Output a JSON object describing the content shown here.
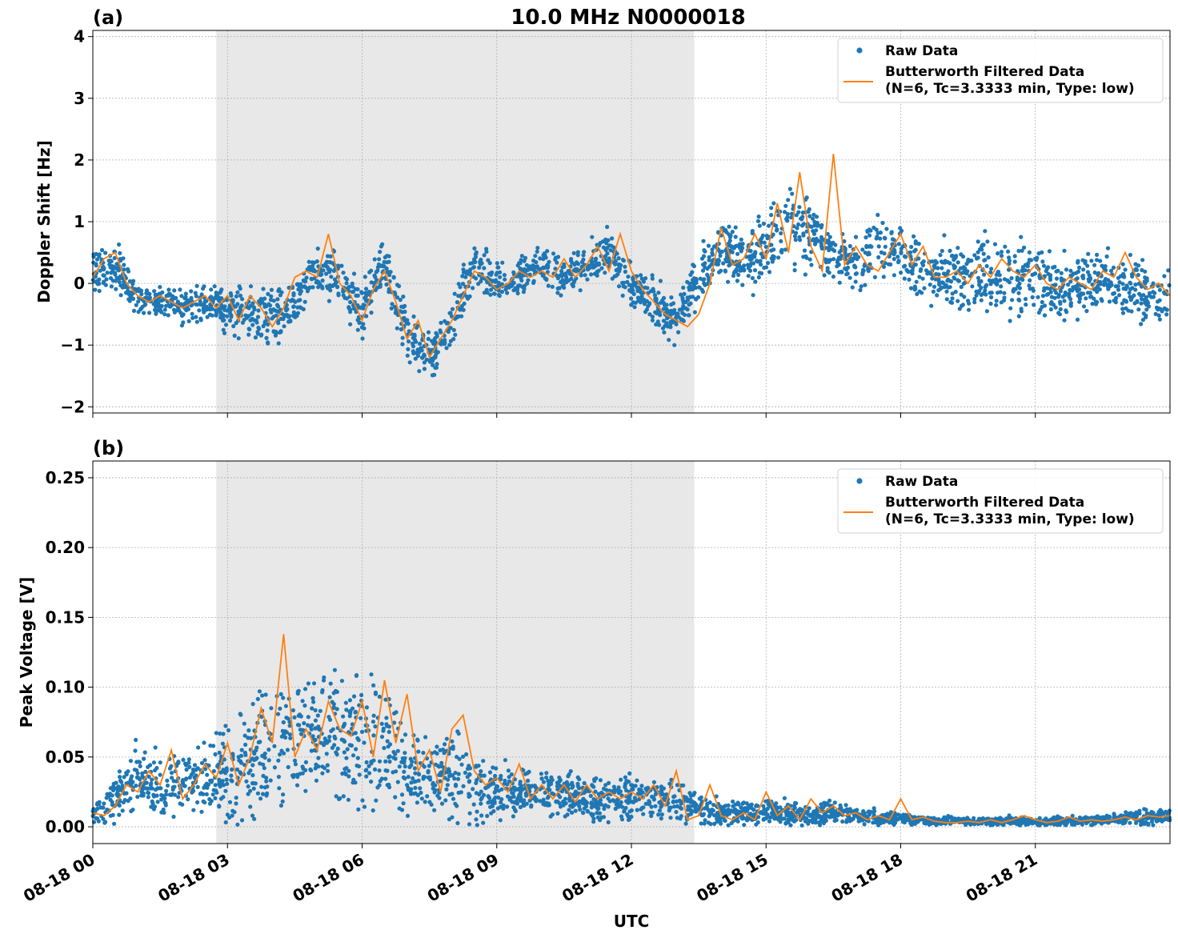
{
  "colors": {
    "raw": "#1f77b4",
    "filtered": "#ff7f0e",
    "shade": "#e8e8e8"
  },
  "chart_data": [
    {
      "type": "scatter",
      "panel_label": "(a)",
      "title": "10.0 MHz N0000018",
      "ylabel": "Doppler Shift [Hz]",
      "xlabel": "",
      "xlim": [
        "08-18 00:00",
        "08-19 00:00"
      ],
      "ylim": [
        -2.1,
        4.1
      ],
      "yticks": [
        -2,
        -1,
        0,
        1,
        2,
        3,
        4
      ],
      "ytick_labels": [
        "−2",
        "−1",
        "0",
        "1",
        "2",
        "3",
        "4"
      ],
      "xticks_hours": [
        0,
        3,
        6,
        9,
        12,
        15,
        18,
        21
      ],
      "grid": true,
      "legend_position": "top-right",
      "shaded_interval_utc_hours": [
        2.75,
        13.4
      ],
      "series": [
        {
          "name": "Raw Data",
          "style": "points",
          "x_hours": [
            0,
            0.5,
            1,
            1.5,
            2,
            2.5,
            3,
            3.5,
            4,
            4.5,
            5,
            5.5,
            6,
            6.5,
            7,
            7.5,
            8,
            8.5,
            9,
            9.5,
            10,
            10.5,
            11,
            11.5,
            12,
            12.5,
            13,
            13.5,
            14,
            14.5,
            15,
            15.5,
            16,
            16.5,
            17,
            17.5,
            18,
            18.5,
            19,
            19.5,
            20,
            20.5,
            21,
            21.5,
            22,
            22.5,
            23,
            23.5
          ],
          "y_center": [
            0.2,
            0.3,
            -0.3,
            -0.3,
            -0.4,
            -0.3,
            -0.4,
            -0.5,
            -0.6,
            -0.3,
            0.2,
            0.1,
            -0.5,
            0.3,
            -0.8,
            -1.2,
            -0.7,
            0.3,
            0.0,
            0.1,
            0.3,
            0.1,
            0.3,
            0.5,
            -0.1,
            -0.3,
            -0.6,
            0.1,
            0.6,
            0.3,
            0.6,
            0.9,
            0.9,
            0.4,
            0.3,
            0.6,
            0.5,
            0.2,
            0.2,
            0.1,
            0.2,
            0.1,
            0.1,
            -0.1,
            0.0,
            0.1,
            -0.1,
            -0.2
          ],
          "y_spread": [
            0.5,
            0.5,
            0.4,
            0.35,
            0.35,
            0.35,
            0.5,
            0.6,
            0.6,
            0.5,
            0.5,
            0.5,
            0.6,
            0.5,
            0.55,
            0.5,
            0.5,
            0.5,
            0.45,
            0.4,
            0.4,
            0.4,
            0.4,
            0.5,
            0.45,
            0.45,
            0.45,
            0.55,
            0.6,
            0.6,
            0.7,
            0.8,
            0.8,
            0.6,
            0.55,
            0.6,
            0.6,
            0.6,
            0.7,
            0.75,
            0.8,
            0.75,
            0.7,
            0.65,
            0.7,
            0.7,
            0.7,
            0.6
          ]
        },
        {
          "name": "Butterworth Filtered Data\n(N=6, Tc=3.3333 min, Type: low)",
          "style": "line",
          "x_hours": [
            0,
            0.25,
            0.5,
            0.75,
            1,
            1.25,
            1.5,
            1.75,
            2,
            2.25,
            2.5,
            2.75,
            3,
            3.25,
            3.5,
            3.75,
            4,
            4.25,
            4.5,
            4.75,
            5,
            5.25,
            5.5,
            5.75,
            6,
            6.25,
            6.5,
            6.75,
            7,
            7.25,
            7.5,
            7.75,
            8,
            8.25,
            8.5,
            8.75,
            9,
            9.25,
            9.5,
            9.75,
            10,
            10.25,
            10.5,
            10.75,
            11,
            11.25,
            11.5,
            11.75,
            12,
            12.25,
            12.5,
            12.75,
            13,
            13.25,
            13.5,
            13.75,
            14,
            14.25,
            14.5,
            14.75,
            15,
            15.25,
            15.5,
            15.75,
            16,
            16.25,
            16.5,
            16.75,
            17,
            17.25,
            17.5,
            17.75,
            18,
            18.25,
            18.5,
            18.75,
            19,
            19.25,
            19.5,
            19.75,
            20,
            20.25,
            20.5,
            20.75,
            21,
            21.25,
            21.5,
            21.75,
            22,
            22.25,
            22.5,
            22.75,
            23,
            23.25,
            23.5,
            23.75,
            24
          ],
          "y": [
            0.1,
            0.4,
            0.5,
            0.0,
            -0.2,
            -0.3,
            -0.2,
            -0.3,
            -0.4,
            -0.3,
            -0.2,
            -0.4,
            -0.2,
            -0.6,
            -0.2,
            -0.4,
            -0.7,
            -0.4,
            0.1,
            0.2,
            0.1,
            0.8,
            0.0,
            -0.2,
            -0.6,
            -0.1,
            0.2,
            -0.3,
            -0.9,
            -0.6,
            -1.2,
            -0.9,
            -0.6,
            -0.2,
            0.2,
            0.1,
            -0.1,
            0.0,
            0.2,
            0.1,
            0.2,
            0.1,
            0.4,
            0.1,
            0.3,
            0.6,
            0.2,
            0.8,
            0.2,
            -0.1,
            -0.3,
            -0.5,
            -0.6,
            -0.7,
            -0.5,
            0.0,
            0.9,
            0.3,
            0.4,
            0.8,
            0.4,
            1.3,
            0.5,
            1.8,
            0.6,
            0.2,
            2.1,
            0.3,
            0.6,
            0.3,
            0.2,
            0.5,
            0.8,
            0.3,
            0.6,
            0.1,
            0.1,
            0.2,
            0.0,
            0.3,
            0.1,
            0.4,
            0.2,
            0.1,
            0.3,
            0.0,
            -0.1,
            0.1,
            0.0,
            -0.1,
            0.2,
            0.1,
            0.5,
            0.1,
            -0.1,
            0.0,
            -0.2
          ]
        }
      ]
    },
    {
      "type": "scatter",
      "panel_label": "(b)",
      "title": "",
      "ylabel": "Peak Voltage [V]",
      "xlabel": "UTC",
      "xlim": [
        "08-18 00:00",
        "08-19 00:00"
      ],
      "ylim": [
        -0.012,
        0.262
      ],
      "yticks": [
        0.0,
        0.05,
        0.1,
        0.15,
        0.2,
        0.25
      ],
      "ytick_labels": [
        "0.00",
        "0.05",
        "0.10",
        "0.15",
        "0.20",
        "0.25"
      ],
      "xticks_hours": [
        0,
        3,
        6,
        9,
        12,
        15,
        18,
        21
      ],
      "xtick_labels": [
        "08-18 00",
        "08-18 03",
        "08-18 06",
        "08-18 09",
        "08-18 12",
        "08-18 15",
        "08-18 18",
        "08-18 21"
      ],
      "grid": true,
      "legend_position": "top-right",
      "shaded_interval_utc_hours": [
        2.75,
        13.4
      ],
      "series": [
        {
          "name": "Raw Data",
          "style": "points",
          "x_hours": [
            0,
            0.5,
            1,
            1.5,
            2,
            2.5,
            3,
            3.5,
            4,
            4.5,
            5,
            5.5,
            6,
            6.5,
            7,
            7.5,
            8,
            8.5,
            9,
            9.5,
            10,
            10.5,
            11,
            11.5,
            12,
            12.5,
            13,
            13.5,
            14,
            14.5,
            15,
            15.5,
            16,
            16.5,
            17,
            17.5,
            18,
            18.5,
            19,
            19.5,
            20,
            20.5,
            21,
            21.5,
            22,
            22.5,
            23,
            23.5
          ],
          "y_center": [
            0.01,
            0.02,
            0.035,
            0.025,
            0.03,
            0.035,
            0.035,
            0.05,
            0.06,
            0.06,
            0.07,
            0.065,
            0.06,
            0.055,
            0.04,
            0.04,
            0.04,
            0.03,
            0.025,
            0.025,
            0.025,
            0.025,
            0.02,
            0.02,
            0.02,
            0.02,
            0.02,
            0.012,
            0.01,
            0.01,
            0.012,
            0.01,
            0.01,
            0.01,
            0.008,
            0.007,
            0.006,
            0.005,
            0.004,
            0.004,
            0.004,
            0.004,
            0.004,
            0.004,
            0.004,
            0.005,
            0.006,
            0.007
          ],
          "y_spread": [
            0.01,
            0.02,
            0.03,
            0.03,
            0.03,
            0.035,
            0.05,
            0.06,
            0.07,
            0.06,
            0.06,
            0.06,
            0.06,
            0.06,
            0.04,
            0.035,
            0.04,
            0.035,
            0.025,
            0.02,
            0.02,
            0.02,
            0.02,
            0.02,
            0.02,
            0.02,
            0.02,
            0.015,
            0.012,
            0.012,
            0.012,
            0.012,
            0.012,
            0.01,
            0.008,
            0.007,
            0.006,
            0.005,
            0.004,
            0.004,
            0.004,
            0.004,
            0.004,
            0.004,
            0.004,
            0.005,
            0.006,
            0.007
          ]
        },
        {
          "name": "Butterworth Filtered Data\n(N=6, Tc=3.3333 min, Type: low)",
          "style": "line",
          "x_hours": [
            0,
            0.25,
            0.5,
            0.75,
            1,
            1.25,
            1.5,
            1.75,
            2,
            2.25,
            2.5,
            2.75,
            3,
            3.25,
            3.5,
            3.75,
            4,
            4.25,
            4.5,
            4.75,
            5,
            5.25,
            5.5,
            5.75,
            6,
            6.25,
            6.5,
            6.75,
            7,
            7.25,
            7.5,
            7.75,
            8,
            8.25,
            8.5,
            8.75,
            9,
            9.25,
            9.5,
            9.75,
            10,
            10.25,
            10.5,
            10.75,
            11,
            11.25,
            11.5,
            11.75,
            12,
            12.25,
            12.5,
            12.75,
            13,
            13.25,
            13.5,
            13.75,
            14,
            14.25,
            14.5,
            14.75,
            15,
            15.25,
            15.5,
            15.75,
            16,
            16.25,
            16.5,
            16.75,
            17,
            17.25,
            17.5,
            17.75,
            18,
            18.25,
            18.5,
            18.75,
            19,
            19.25,
            19.5,
            19.75,
            20,
            20.25,
            20.5,
            20.75,
            21,
            21.25,
            21.5,
            21.75,
            22,
            22.25,
            22.5,
            22.75,
            23,
            23.25,
            23.5,
            23.75,
            24
          ],
          "y": [
            0.01,
            0.008,
            0.015,
            0.03,
            0.025,
            0.04,
            0.03,
            0.055,
            0.02,
            0.03,
            0.045,
            0.035,
            0.06,
            0.03,
            0.05,
            0.085,
            0.06,
            0.138,
            0.05,
            0.07,
            0.055,
            0.09,
            0.07,
            0.065,
            0.09,
            0.05,
            0.105,
            0.06,
            0.095,
            0.04,
            0.055,
            0.025,
            0.07,
            0.08,
            0.04,
            0.03,
            0.035,
            0.025,
            0.045,
            0.02,
            0.03,
            0.02,
            0.03,
            0.018,
            0.03,
            0.02,
            0.025,
            0.02,
            0.025,
            0.02,
            0.03,
            0.015,
            0.04,
            0.005,
            0.008,
            0.03,
            0.008,
            0.005,
            0.01,
            0.005,
            0.025,
            0.008,
            0.015,
            0.005,
            0.02,
            0.01,
            0.015,
            0.008,
            0.01,
            0.005,
            0.008,
            0.005,
            0.02,
            0.005,
            0.007,
            0.004,
            0.003,
            0.003,
            0.004,
            0.003,
            0.005,
            0.003,
            0.005,
            0.008,
            0.005,
            0.003,
            0.004,
            0.007,
            0.004,
            0.005,
            0.004,
            0.005,
            0.007,
            0.005,
            0.008,
            0.007,
            0.008
          ]
        }
      ]
    }
  ]
}
